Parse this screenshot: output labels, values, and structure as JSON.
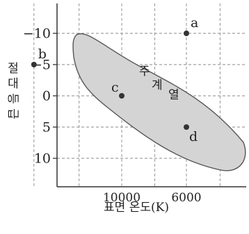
{
  "chart_data": {
    "type": "scatter",
    "title": "",
    "xlabel": "표면 온도(K)",
    "ylabel": "절대 등급",
    "x_axis": {
      "scale": "log",
      "reversed": true,
      "ticks": [
        {
          "value": 10000,
          "label": "10000"
        },
        {
          "value": 6000,
          "label": "6000"
        }
      ],
      "grid_values": [
        20000,
        14000,
        10000,
        7700,
        6000,
        4600
      ],
      "range": [
        30000,
        4200
      ]
    },
    "y_axis": {
      "reversed": true,
      "ticks": [
        {
          "value": -10,
          "label": "−10"
        },
        {
          "value": -5,
          "label": "−5"
        },
        {
          "value": 0,
          "label": "0"
        },
        {
          "value": 5,
          "label": "5"
        },
        {
          "value": 10,
          "label": "10"
        }
      ],
      "grid_values": [
        -10,
        -5,
        0,
        5,
        10
      ],
      "range": [
        -14,
        14
      ]
    },
    "grid": true,
    "region_label": [
      "주",
      "계",
      "열"
    ],
    "points": [
      {
        "label": "a",
        "temperature": 6000,
        "magnitude": -10
      },
      {
        "label": "b",
        "temperature": 20000,
        "magnitude": -5
      },
      {
        "label": "c",
        "temperature": 10000,
        "magnitude": 0
      },
      {
        "label": "d",
        "temperature": 6000,
        "magnitude": 5
      }
    ],
    "colors": {
      "band": "#d4d4d4",
      "grid": "#888888",
      "point": "#333333",
      "axis": "#333333"
    }
  }
}
